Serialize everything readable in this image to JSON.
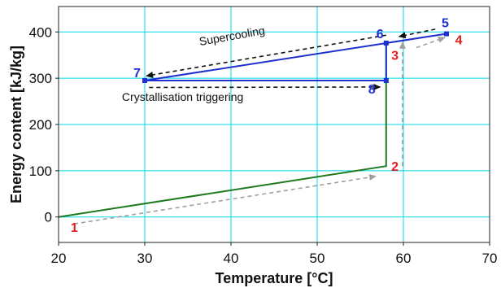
{
  "chart_data": {
    "type": "line",
    "title": "",
    "xlabel": "Temperature [°C]",
    "ylabel": "Energy content [kJ/kg]",
    "xlim": [
      20,
      70
    ],
    "ylim": [
      -55,
      455
    ],
    "xticks": [
      20,
      30,
      40,
      50,
      60,
      70
    ],
    "yticks": [
      0,
      100,
      200,
      300,
      400
    ],
    "grid": true,
    "colors": {
      "green": "#1e7a1e",
      "blue": "#1f2fd0",
      "red": "#e02020",
      "black_arrow": "#111111",
      "gray_arrow": "#a0a0a0",
      "grid": "#00d8e8"
    },
    "series": [
      {
        "color": "green",
        "points": [
          [
            20,
            0
          ],
          [
            58,
            110
          ],
          [
            58,
            376
          ]
        ]
      },
      {
        "color": "blue",
        "points": [
          [
            58,
            376
          ],
          [
            65,
            396
          ],
          [
            30,
            295
          ],
          [
            58,
            295
          ],
          [
            58,
            376
          ]
        ]
      }
    ],
    "markers": [
      {
        "label": "5",
        "x": 65,
        "y": 396,
        "label_color": "blue"
      },
      {
        "label": "6",
        "x": 58,
        "y": 376,
        "label_color": "blue"
      },
      {
        "label": "7",
        "x": 30,
        "y": 295,
        "label_color": "blue"
      },
      {
        "label": "8",
        "x": 58,
        "y": 295,
        "label_color": "blue"
      }
    ],
    "point_labels": [
      {
        "label": "1",
        "x": 21.4,
        "y": -22,
        "color": "red"
      },
      {
        "label": "2",
        "x": 58.6,
        "y": 110,
        "color": "red"
      },
      {
        "label": "3",
        "x": 58.6,
        "y": 350,
        "color": "red"
      },
      {
        "label": "4",
        "x": 66,
        "y": 384,
        "color": "red"
      }
    ],
    "arrows": [
      {
        "color": "black_arrow",
        "from": [
          63.7,
          406
        ],
        "to": [
          59.5,
          390
        ]
      },
      {
        "color": "black_arrow",
        "from": [
          58,
          393
        ],
        "to": [
          30.2,
          305
        ]
      },
      {
        "color": "black_arrow",
        "from": [
          30.5,
          280
        ],
        "to": [
          57.3,
          281
        ]
      },
      {
        "color": "gray_arrow",
        "from": [
          21.8,
          -15
        ],
        "to": [
          56.8,
          88
        ]
      },
      {
        "color": "gray_arrow",
        "from": [
          59.9,
          110
        ],
        "to": [
          59.9,
          378
        ]
      },
      {
        "color": "gray_arrow",
        "from": [
          61.5,
          366
        ],
        "to": [
          64.8,
          388
        ]
      }
    ],
    "annotations": [
      {
        "text": "Supercooling",
        "x": 40.2,
        "y": 383,
        "rotate": -10
      },
      {
        "text": "Crystallisation triggering",
        "x": 34.4,
        "y": 251,
        "rotate": 0
      }
    ]
  }
}
